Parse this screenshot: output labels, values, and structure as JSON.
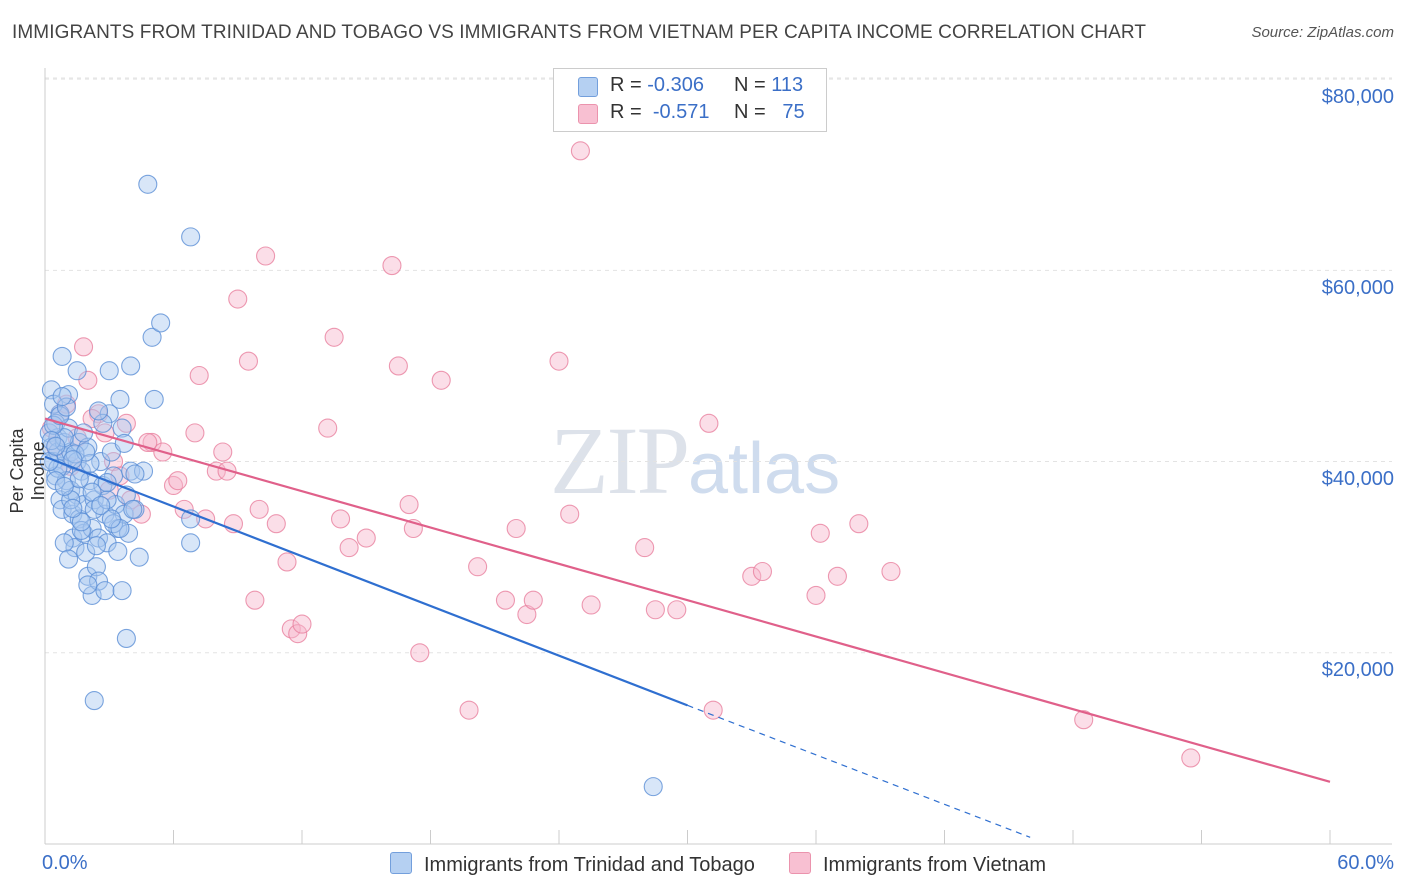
{
  "header": {
    "title": "IMMIGRANTS FROM TRINIDAD AND TOBAGO VS IMMIGRANTS FROM VIETNAM PER CAPITA INCOME CORRELATION CHART",
    "source": "Source: ZipAtlas.com"
  },
  "watermark": {
    "zip": "ZIP",
    "atlas": "atlas"
  },
  "legend": {
    "series1": {
      "r_label": "R =",
      "r_value": "-0.306",
      "n_label": "N =",
      "n_value": "113",
      "color": "#a9c8f0"
    },
    "series2": {
      "r_label": "R =",
      "r_value": "-0.571",
      "n_label": "N =",
      "n_value": "75",
      "color": "#f7b6cb"
    }
  },
  "bottom_legend": {
    "item1": "Immigrants from Trinidad and Tobago",
    "item2": "Immigrants from Vietnam"
  },
  "axis": {
    "y_label": "Per Capita Income",
    "y_ticks": [
      "$80,000",
      "$60,000",
      "$40,000",
      "$20,000"
    ],
    "x_min_label": "0.0%",
    "x_max_label": "60.0%"
  },
  "colors": {
    "blue_fill": "#a9c8f0",
    "blue_stroke": "#5b8fd6",
    "blue_line": "#2f6fd0",
    "pink_fill": "#f7b6cb",
    "pink_stroke": "#e8819f",
    "pink_line": "#e0608a",
    "tick_text": "#3b6fc7"
  },
  "chart_data": {
    "type": "scatter",
    "title": "IMMIGRANTS FROM TRINIDAD AND TOBAGO VS IMMIGRANTS FROM VIETNAM PER CAPITA INCOME CORRELATION CHART",
    "xlabel": "",
    "ylabel": "Per Capita Income",
    "xlim": [
      0,
      60
    ],
    "ylim": [
      0,
      82000
    ],
    "grid": true,
    "legend_position": "top-center",
    "series": [
      {
        "name": "Immigrants from Trinidad and Tobago",
        "r": -0.306,
        "n": 113,
        "trend": {
          "x0": 0,
          "y0": 40500,
          "x1": 30,
          "y1": 14500,
          "dashed_to_x": 46,
          "dashed_to_y": 700
        },
        "points": [
          [
            0.2,
            43000
          ],
          [
            0.3,
            41500
          ],
          [
            0.4,
            40000
          ],
          [
            0.5,
            38500
          ],
          [
            0.6,
            42500
          ],
          [
            0.7,
            45000
          ],
          [
            0.8,
            39500
          ],
          [
            0.3,
            47500
          ],
          [
            0.4,
            46000
          ],
          [
            0.5,
            44000
          ],
          [
            0.6,
            41000
          ],
          [
            0.7,
            36000
          ],
          [
            0.8,
            35000
          ],
          [
            0.9,
            42000
          ],
          [
            1.0,
            40500
          ],
          [
            1.0,
            38000
          ],
          [
            1.1,
            43500
          ],
          [
            1.2,
            41000
          ],
          [
            1.2,
            37000
          ],
          [
            1.3,
            34500
          ],
          [
            1.3,
            32000
          ],
          [
            1.4,
            31000
          ],
          [
            1.5,
            40000
          ],
          [
            1.5,
            36500
          ],
          [
            1.6,
            42000
          ],
          [
            1.6,
            34000
          ],
          [
            1.7,
            39000
          ],
          [
            1.8,
            35500
          ],
          [
            1.8,
            32500
          ],
          [
            1.9,
            30500
          ],
          [
            2.0,
            41500
          ],
          [
            2.0,
            28000
          ],
          [
            2.1,
            38000
          ],
          [
            2.2,
            33000
          ],
          [
            2.2,
            26000
          ],
          [
            2.3,
            36000
          ],
          [
            2.4,
            29000
          ],
          [
            2.5,
            32000
          ],
          [
            2.5,
            27500
          ],
          [
            2.6,
            40000
          ],
          [
            2.7,
            37500
          ],
          [
            2.8,
            34500
          ],
          [
            2.8,
            26500
          ],
          [
            2.9,
            31500
          ],
          [
            3.0,
            49500
          ],
          [
            3.0,
            45000
          ],
          [
            3.1,
            41000
          ],
          [
            3.2,
            38500
          ],
          [
            3.3,
            35500
          ],
          [
            3.4,
            33000
          ],
          [
            3.5,
            46500
          ],
          [
            3.6,
            43500
          ],
          [
            3.6,
            26500
          ],
          [
            3.7,
            34500
          ],
          [
            3.8,
            36500
          ],
          [
            3.8,
            21500
          ],
          [
            3.9,
            32500
          ],
          [
            4.0,
            50000
          ],
          [
            4.0,
            39000
          ],
          [
            4.2,
            35000
          ],
          [
            4.4,
            30000
          ],
          [
            4.6,
            39000
          ],
          [
            5.0,
            53000
          ],
          [
            5.1,
            46500
          ],
          [
            5.4,
            54500
          ],
          [
            6.8,
            63500
          ],
          [
            4.8,
            69000
          ],
          [
            2.3,
            15000
          ],
          [
            0.8,
            51000
          ],
          [
            1.1,
            47000
          ],
          [
            1.5,
            49500
          ],
          [
            2.7,
            44000
          ],
          [
            0.9,
            42500
          ],
          [
            1.4,
            40800
          ],
          [
            2.1,
            39800
          ],
          [
            0.6,
            39300
          ],
          [
            0.5,
            38000
          ],
          [
            1.2,
            36000
          ],
          [
            2.3,
            35000
          ],
          [
            3.2,
            33500
          ],
          [
            1.7,
            32800
          ],
          [
            0.9,
            31500
          ],
          [
            6.8,
            34000
          ],
          [
            6.8,
            31500
          ],
          [
            28.4,
            6000
          ],
          [
            2.9,
            36000
          ],
          [
            4.1,
            35000
          ],
          [
            3.5,
            33000
          ],
          [
            1.9,
            41000
          ],
          [
            0.4,
            43800
          ],
          [
            0.7,
            44800
          ],
          [
            1.0,
            45700
          ],
          [
            1.3,
            40200
          ],
          [
            1.6,
            38200
          ],
          [
            2.2,
            36800
          ],
          [
            2.6,
            35400
          ],
          [
            3.1,
            34000
          ],
          [
            0.2,
            40000
          ],
          [
            0.3,
            42200
          ],
          [
            0.9,
            37400
          ],
          [
            1.7,
            33700
          ],
          [
            2.4,
            31200
          ],
          [
            1.1,
            29800
          ],
          [
            2.0,
            27100
          ],
          [
            3.4,
            30600
          ],
          [
            4.2,
            38700
          ],
          [
            0.5,
            41600
          ],
          [
            1.8,
            43000
          ],
          [
            2.9,
            37800
          ],
          [
            1.3,
            35100
          ],
          [
            0.8,
            46800
          ],
          [
            2.5,
            45300
          ],
          [
            3.7,
            41900
          ]
        ]
      },
      {
        "name": "Immigrants from Vietnam",
        "r": -0.571,
        "n": 75,
        "trend": {
          "x0": 0,
          "y0": 44500,
          "x1": 60,
          "y1": 6500
        },
        "points": [
          [
            0.3,
            43500
          ],
          [
            0.5,
            41500
          ],
          [
            0.7,
            45000
          ],
          [
            1.0,
            46000
          ],
          [
            1.2,
            39500
          ],
          [
            1.8,
            52000
          ],
          [
            2.0,
            48500
          ],
          [
            2.5,
            45000
          ],
          [
            2.8,
            43000
          ],
          [
            3.2,
            40000
          ],
          [
            3.5,
            38500
          ],
          [
            3.8,
            44000
          ],
          [
            4.0,
            36000
          ],
          [
            4.5,
            34500
          ],
          [
            5.0,
            42000
          ],
          [
            5.5,
            41000
          ],
          [
            6.0,
            37500
          ],
          [
            6.5,
            35000
          ],
          [
            7.0,
            43000
          ],
          [
            7.2,
            49000
          ],
          [
            7.5,
            34000
          ],
          [
            8.0,
            39000
          ],
          [
            8.3,
            41000
          ],
          [
            8.5,
            39000
          ],
          [
            8.8,
            33500
          ],
          [
            9.0,
            57000
          ],
          [
            9.5,
            50500
          ],
          [
            9.8,
            25500
          ],
          [
            10.0,
            35000
          ],
          [
            10.3,
            61500
          ],
          [
            10.8,
            33500
          ],
          [
            11.3,
            29500
          ],
          [
            11.5,
            22500
          ],
          [
            11.8,
            22000
          ],
          [
            12.0,
            23000
          ],
          [
            13.2,
            43500
          ],
          [
            13.5,
            53000
          ],
          [
            13.8,
            34000
          ],
          [
            14.2,
            31000
          ],
          [
            15.0,
            32000
          ],
          [
            16.2,
            60500
          ],
          [
            16.5,
            50000
          ],
          [
            17.0,
            35500
          ],
          [
            17.2,
            33000
          ],
          [
            17.5,
            20000
          ],
          [
            18.5,
            48500
          ],
          [
            19.8,
            14000
          ],
          [
            20.2,
            29000
          ],
          [
            21.5,
            25500
          ],
          [
            22.0,
            33000
          ],
          [
            22.5,
            24000
          ],
          [
            22.8,
            25500
          ],
          [
            25.0,
            72500
          ],
          [
            24.0,
            50500
          ],
          [
            24.5,
            34500
          ],
          [
            25.5,
            25000
          ],
          [
            28.0,
            31000
          ],
          [
            28.5,
            24500
          ],
          [
            29.5,
            24500
          ],
          [
            31.0,
            44000
          ],
          [
            31.2,
            14000
          ],
          [
            33.0,
            28000
          ],
          [
            33.5,
            28500
          ],
          [
            36.0,
            26000
          ],
          [
            36.2,
            32500
          ],
          [
            37.0,
            28000
          ],
          [
            38.0,
            33500
          ],
          [
            39.5,
            28500
          ],
          [
            48.5,
            13000
          ],
          [
            53.5,
            9000
          ],
          [
            1.5,
            42500
          ],
          [
            2.2,
            44500
          ],
          [
            4.8,
            42000
          ],
          [
            6.2,
            38000
          ],
          [
            3.0,
            37000
          ]
        ]
      }
    ]
  }
}
